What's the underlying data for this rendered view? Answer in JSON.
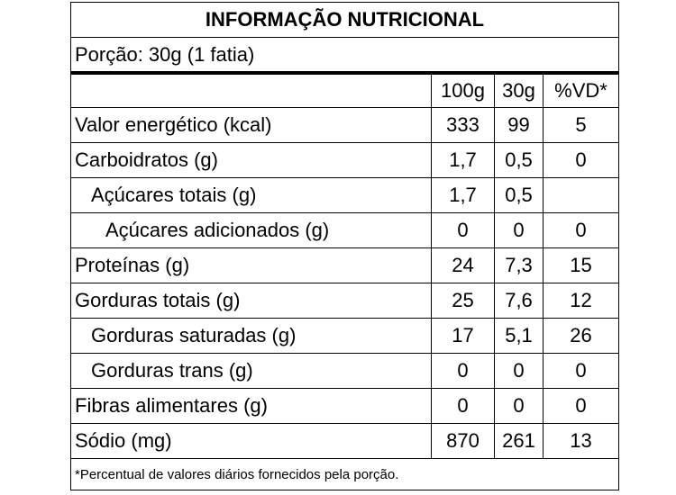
{
  "table": {
    "title": "INFORMAÇÃO NUTRICIONAL",
    "portion": "Porção: 30g (1 fatia)",
    "headers": [
      "100g",
      "30g",
      "%VD*"
    ],
    "rows": [
      [
        "Valor energético (kcal)",
        "333",
        "99",
        "5"
      ],
      [
        "Carboidratos (g)",
        "1,7",
        "0,5",
        "0"
      ],
      [
        "Açúcares totais (g)",
        "1,7",
        "0,5"
      ],
      [
        "Açúcares adicionados (g)",
        "0",
        "0",
        "0"
      ],
      [
        "Proteínas (g)",
        "24",
        "7,3",
        "15"
      ],
      [
        "Gorduras totais (g)",
        "25",
        "7,6",
        "12"
      ],
      [
        "Gorduras saturadas (g)",
        "17",
        "5,1",
        "26"
      ],
      [
        "Gorduras trans (g)",
        "0",
        "0",
        "0"
      ],
      [
        "Fibras alimentares (g)",
        "0",
        "0",
        "0"
      ],
      [
        "Sódio (mg)",
        "870",
        "261",
        "13"
      ]
    ],
    "footnote": "*Percentual de valores diários fornecidos pela porção."
  }
}
